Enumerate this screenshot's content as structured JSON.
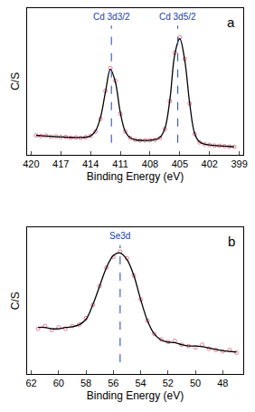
{
  "chart_data": [
    {
      "type": "scatter",
      "label": "a",
      "x_label": "Binding Energy (eV)",
      "y_label": "C/S",
      "x": [
        419.5,
        419,
        418.5,
        418,
        417.5,
        417,
        416.5,
        416,
        415.5,
        415,
        414.5,
        414,
        413.5,
        413,
        412.5,
        412,
        411.5,
        411,
        410.5,
        410,
        409.5,
        409,
        408.5,
        408,
        407.5,
        407,
        406.5,
        406,
        405.5,
        405,
        404.5,
        404,
        403.5,
        403,
        402.5,
        402,
        401.5,
        401,
        400.5,
        400,
        399.5
      ],
      "series": [
        {
          "type": "scatter",
          "color": "#e0607e",
          "marker": "circle-open",
          "values": [
            15,
            14.5,
            14.8,
            14,
            14.2,
            13.6,
            13.8,
            13.2,
            13.4,
            13,
            13.5,
            14.5,
            18,
            28,
            50,
            68,
            58,
            32,
            18,
            13,
            11.5,
            11,
            11,
            11.2,
            11.5,
            13,
            20,
            42,
            80,
            92,
            75,
            40,
            16,
            9.5,
            8,
            7.5,
            7,
            6.8,
            6.5,
            6.2,
            6
          ]
        },
        {
          "type": "line",
          "color": "#000000",
          "line_style": "solid",
          "values": [
            15,
            14.7,
            14.5,
            14.2,
            14,
            13.8,
            13.6,
            13.4,
            13.3,
            13.3,
            13.6,
            14.6,
            18.5,
            29,
            49,
            67,
            57,
            33,
            18,
            13,
            11.6,
            11.1,
            11,
            11.2,
            11.7,
            13.4,
            20.5,
            43,
            79,
            91,
            74,
            40,
            16.5,
            9.8,
            8.2,
            7.5,
            7.1,
            6.8,
            6.5,
            6.3,
            6.1
          ]
        }
      ],
      "xlim": [
        420.4,
        398.6
      ],
      "xticks": [
        420,
        417,
        414,
        411,
        408,
        405,
        402,
        399
      ],
      "ylim": [
        0,
        115
      ],
      "tick_labels": "x",
      "annotations": [
        {
          "text": "Cd 3d3/2",
          "x": 411.9
        },
        {
          "text": "Cd 3d5/2",
          "x": 405.2
        }
      ]
    },
    {
      "type": "scatter",
      "label": "b",
      "x_label": "Binding Energy (eV)",
      "y_label": "C/S",
      "x": [
        61.5,
        61,
        60.5,
        60,
        59.5,
        59,
        58.5,
        58,
        57.5,
        57,
        56.5,
        56,
        55.5,
        55,
        54.5,
        54,
        53.5,
        53,
        52.5,
        52,
        51.5,
        51,
        50.5,
        50,
        49.5,
        49,
        48.5,
        48,
        47.5,
        47
      ],
      "series": [
        {
          "type": "scatter",
          "color": "#e0607e",
          "marker": "circle-open",
          "values": [
            34,
            36,
            33,
            35,
            34,
            36,
            37,
            42,
            52,
            66,
            80,
            88,
            92,
            87,
            74,
            56,
            40,
            30,
            26,
            24,
            25,
            22,
            21,
            20,
            22,
            19,
            18,
            17,
            18,
            16
          ]
        },
        {
          "type": "line",
          "color": "#000000",
          "line_style": "solid",
          "values": [
            35,
            35,
            34,
            34,
            35,
            35.5,
            37,
            41,
            52,
            66,
            80,
            89,
            91,
            86,
            74,
            56,
            40,
            30,
            25.5,
            24,
            23.5,
            22,
            21,
            21,
            20.5,
            19.5,
            18.5,
            17.5,
            17,
            16.5
          ]
        }
      ],
      "xlim": [
        62.3,
        46.5
      ],
      "xticks": [
        62,
        60,
        58,
        56,
        54,
        52,
        50,
        48
      ],
      "ylim": [
        0,
        110
      ],
      "tick_labels": "x",
      "annotations": [
        {
          "text": "Se3d",
          "x": 55.5
        }
      ]
    }
  ]
}
